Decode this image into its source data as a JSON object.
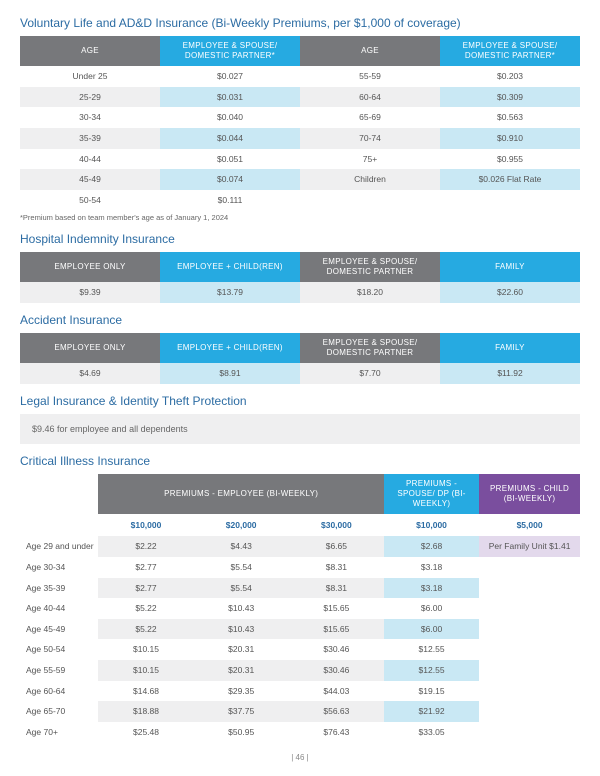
{
  "vlife": {
    "title": "Voluntary Life and AD&D Insurance (Bi-Weekly Premiums, per $1,000 of coverage)",
    "hdr": {
      "age": "AGE",
      "esdp": "EMPLOYEE & SPOUSE/ DOMESTIC PARTNER*"
    },
    "rows": [
      {
        "a1": "Under 25",
        "v1": "$0.027",
        "a2": "55-59",
        "v2": "$0.203"
      },
      {
        "a1": "25-29",
        "v1": "$0.031",
        "a2": "60-64",
        "v2": "$0.309"
      },
      {
        "a1": "30-34",
        "v1": "$0.040",
        "a2": "65-69",
        "v2": "$0.563"
      },
      {
        "a1": "35-39",
        "v1": "$0.044",
        "a2": "70-74",
        "v2": "$0.910"
      },
      {
        "a1": "40-44",
        "v1": "$0.051",
        "a2": "75+",
        "v2": "$0.955"
      },
      {
        "a1": "45-49",
        "v1": "$0.074",
        "a2": "Children",
        "v2": "$0.026 Flat Rate"
      },
      {
        "a1": "50-54",
        "v1": "$0.111",
        "a2": "",
        "v2": ""
      }
    ],
    "footnote": "*Premium based on team member's age as of January 1, 2024"
  },
  "hospital": {
    "title": "Hospital Indemnity Insurance",
    "hdr": {
      "eo": "EMPLOYEE ONLY",
      "ec": "EMPLOYEE + CHILD(REN)",
      "es": "EMPLOYEE & SPOUSE/ DOMESTIC PARTNER",
      "fam": "FAMILY"
    },
    "vals": {
      "eo": "$9.39",
      "ec": "$13.79",
      "es": "$18.20",
      "fam": "$22.60"
    }
  },
  "accident": {
    "title": "Accident Insurance",
    "hdr": {
      "eo": "EMPLOYEE ONLY",
      "ec": "EMPLOYEE + CHILD(REN)",
      "es": "EMPLOYEE & SPOUSE/ DOMESTIC PARTNER",
      "fam": "FAMILY"
    },
    "vals": {
      "eo": "$4.69",
      "ec": "$8.91",
      "es": "$7.70",
      "fam": "$11.92"
    }
  },
  "legal": {
    "title": "Legal Insurance & Identity Theft Protection",
    "text": "$9.46 for employee and all dependents"
  },
  "ci": {
    "title": "Critical Illness Insurance",
    "hdr": {
      "emp": "PREMIUMS - EMPLOYEE (BI-WEEKLY)",
      "sp": "PREMIUMS - SPOUSE/ DP (BI-WEEKLY)",
      "ch": "PREMIUMS - CHILD (BI-WEEKLY)"
    },
    "sub": {
      "c10": "$10,000",
      "c20": "$20,000",
      "c30": "$30,000",
      "s10": "$10,000",
      "ch5": "$5,000"
    },
    "childNote": "Per Family Unit $1.41",
    "rows": [
      {
        "age": "Age 29 and under",
        "e10": "$2.22",
        "e20": "$4.43",
        "e30": "$6.65",
        "s10": "$2.68"
      },
      {
        "age": "Age 30-34",
        "e10": "$2.77",
        "e20": "$5.54",
        "e30": "$8.31",
        "s10": "$3.18"
      },
      {
        "age": "Age 35-39",
        "e10": "$2.77",
        "e20": "$5.54",
        "e30": "$8.31",
        "s10": "$3.18"
      },
      {
        "age": "Age 40-44",
        "e10": "$5.22",
        "e20": "$10.43",
        "e30": "$15.65",
        "s10": "$6.00"
      },
      {
        "age": "Age 45-49",
        "e10": "$5.22",
        "e20": "$10.43",
        "e30": "$15.65",
        "s10": "$6.00"
      },
      {
        "age": "Age 50-54",
        "e10": "$10.15",
        "e20": "$20.31",
        "e30": "$30.46",
        "s10": "$12.55"
      },
      {
        "age": "Age 55-59",
        "e10": "$10.15",
        "e20": "$20.31",
        "e30": "$30.46",
        "s10": "$12.55"
      },
      {
        "age": "Age 60-64",
        "e10": "$14.68",
        "e20": "$29.35",
        "e30": "$44.03",
        "s10": "$19.15"
      },
      {
        "age": "Age 65-70",
        "e10": "$18.88",
        "e20": "$37.75",
        "e30": "$56.63",
        "s10": "$21.92"
      },
      {
        "age": "Age 70+",
        "e10": "$25.48",
        "e20": "$50.95",
        "e30": "$76.43",
        "s10": "$33.05"
      }
    ]
  },
  "page": "| 46 |"
}
